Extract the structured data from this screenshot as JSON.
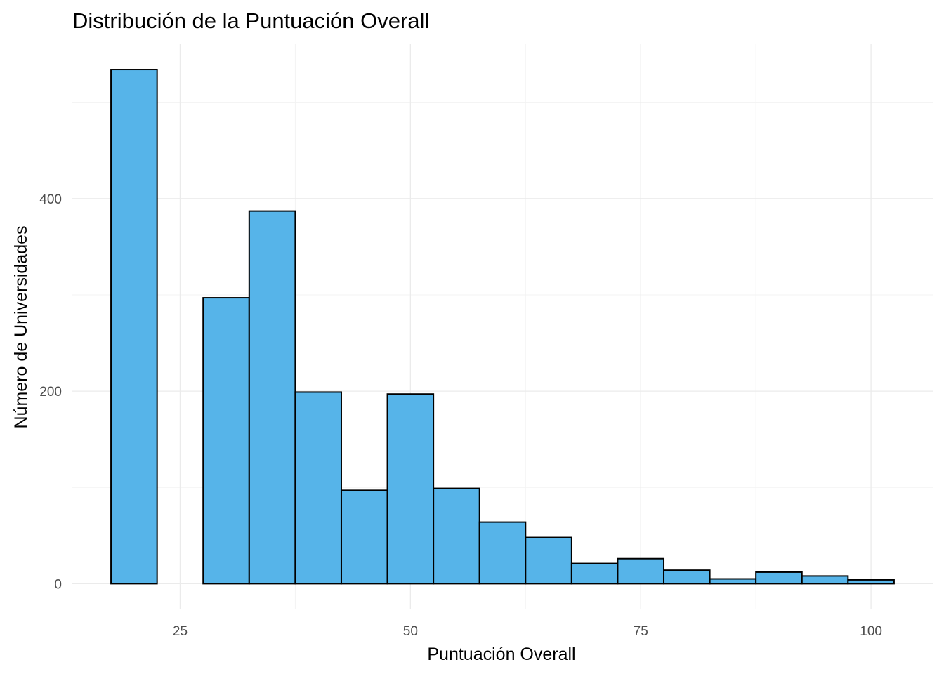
{
  "chart_data": {
    "type": "bar",
    "title": "Distribución de la Puntuación Overall",
    "xlabel": "Puntuación Overall",
    "ylabel": "Número de Universidades",
    "bin_width": 5,
    "bins": [
      {
        "x0": 17.5,
        "x1": 22.5,
        "count": 534
      },
      {
        "x0": 22.5,
        "x1": 27.5,
        "count": 0
      },
      {
        "x0": 27.5,
        "x1": 32.5,
        "count": 297
      },
      {
        "x0": 32.5,
        "x1": 37.5,
        "count": 387
      },
      {
        "x0": 37.5,
        "x1": 42.5,
        "count": 199
      },
      {
        "x0": 42.5,
        "x1": 47.5,
        "count": 97
      },
      {
        "x0": 47.5,
        "x1": 52.5,
        "count": 197
      },
      {
        "x0": 52.5,
        "x1": 57.5,
        "count": 99
      },
      {
        "x0": 57.5,
        "x1": 62.5,
        "count": 64
      },
      {
        "x0": 62.5,
        "x1": 67.5,
        "count": 48
      },
      {
        "x0": 67.5,
        "x1": 72.5,
        "count": 21
      },
      {
        "x0": 72.5,
        "x1": 77.5,
        "count": 26
      },
      {
        "x0": 77.5,
        "x1": 82.5,
        "count": 14
      },
      {
        "x0": 82.5,
        "x1": 87.5,
        "count": 5
      },
      {
        "x0": 87.5,
        "x1": 92.5,
        "count": 12
      },
      {
        "x0": 92.5,
        "x1": 97.5,
        "count": 8
      },
      {
        "x0": 97.5,
        "x1": 102.5,
        "count": 4
      }
    ],
    "xlim": [
      13.3,
      106.7
    ],
    "ylim": [
      -26.7,
      561
    ],
    "x_ticks": [
      25,
      50,
      75,
      100
    ],
    "x_minor": [
      37.5,
      62.5,
      87.5
    ],
    "y_ticks": [
      0,
      200,
      400
    ],
    "y_minor": [
      100,
      300,
      500
    ],
    "grid": true,
    "colors": {
      "fill": "#56B4E9",
      "outline": "#000000"
    }
  }
}
